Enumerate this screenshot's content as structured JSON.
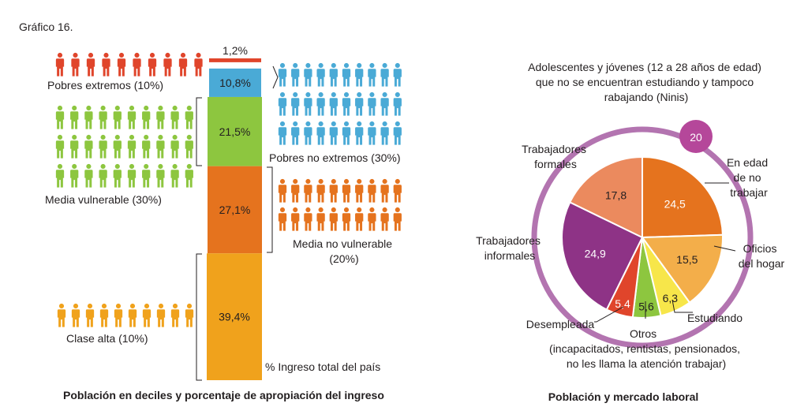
{
  "figure_label": "Gráfico 16.",
  "colors": {
    "extremos": "#e0452b",
    "no_extremos": "#4aaad6",
    "vulnerable": "#8dc63f",
    "no_vulnerable": "#e5731e",
    "alta": "#f0a21c",
    "ring": "#b374b0",
    "badge": "#b5479a"
  },
  "chart_data": [
    {
      "type": "bar",
      "subtype": "stacked-100",
      "title": "Población en deciles y porcentaje de apropiación del ingreso",
      "ylabel": "% Ingreso total del país",
      "categories": [
        "Pobres extremos (10%)",
        "Pobres no extremos (30%)",
        "Media vulnerable (30%)",
        "Media no vulnerable (20%)",
        "Clase alta (10%)"
      ],
      "values": [
        1.2,
        10.8,
        21.5,
        27.1,
        39.4
      ],
      "value_labels": [
        "1,2%",
        "10,8%",
        "21,5%",
        "27,1%",
        "39,4%"
      ],
      "segment_colors": [
        "#e0452b",
        "#4aaad6",
        "#8dc63f",
        "#e5731e",
        "#f0a21c"
      ],
      "people_icons": [
        {
          "group": "Pobres extremos (10%)",
          "rows": 1,
          "cols": 10,
          "color": "#e0452b",
          "side": "left"
        },
        {
          "group": "Pobres no extremos (30%)",
          "rows": 3,
          "cols": 10,
          "color": "#4aaad6",
          "side": "right"
        },
        {
          "group": "Media vulnerable (30%)",
          "rows": 3,
          "cols": 10,
          "color": "#8dc63f",
          "side": "left"
        },
        {
          "group": "Media no vulnerable (20%)",
          "rows": 2,
          "cols": 10,
          "color": "#e5731e",
          "side": "right"
        },
        {
          "group": "Clase alta (10%)",
          "rows": 1,
          "cols": 10,
          "color": "#f0a21c",
          "side": "left"
        }
      ]
    },
    {
      "type": "pie",
      "title": "Población y mercado laboral",
      "subtitle": "Adolescentes y jóvenes (12 a 28 años de edad) que no se encuentran estudiando y tampoco rabajando (Ninis)",
      "subtitle_lines": [
        "Adolescentes y jóvenes (12 a 28 años de edad)",
        "que no se encuentran estudiando y tampoco",
        "rabajando (Ninis)"
      ],
      "ring_value": 20,
      "ring_label": "20",
      "slices": [
        {
          "label": "En edad de no trabajar",
          "label_lines": [
            "En edad",
            "de no",
            "trabajar"
          ],
          "value": 24.5,
          "value_label": "24,5",
          "color": "#e5731e"
        },
        {
          "label": "Oficios del hogar",
          "label_lines": [
            "Oficios",
            "del hogar"
          ],
          "value": 15.5,
          "value_label": "15,5",
          "color": "#f3ae4a"
        },
        {
          "label": "Estudiando",
          "label_lines": [
            "Estudiando"
          ],
          "value": 6.3,
          "value_label": "6,3",
          "color": "#f7e64a"
        },
        {
          "label": "Otros (incapacitados, rentistas, pensionados, no les llama la atención trabajar)",
          "label_lines": [
            "Otros",
            "(incapacitados, rentistas, pensionados,",
            "no les llama la atención trabajar)"
          ],
          "value": 5.6,
          "value_label": "5,6",
          "color": "#8dc63f"
        },
        {
          "label": "Desempleada",
          "label_lines": [
            "Desempleada"
          ],
          "value": 5.4,
          "value_label": "5,4",
          "color": "#e0452b"
        },
        {
          "label": "Trabajadores informales",
          "label_lines": [
            "Trabajadores",
            "informales"
          ],
          "value": 24.9,
          "value_label": "24,9",
          "color": "#8e3386"
        },
        {
          "label": "Trabajadores formales",
          "label_lines": [
            "Trabajadores",
            "formales"
          ],
          "value": 17.8,
          "value_label": "17,8",
          "color": "#eb8a5e"
        }
      ]
    }
  ]
}
